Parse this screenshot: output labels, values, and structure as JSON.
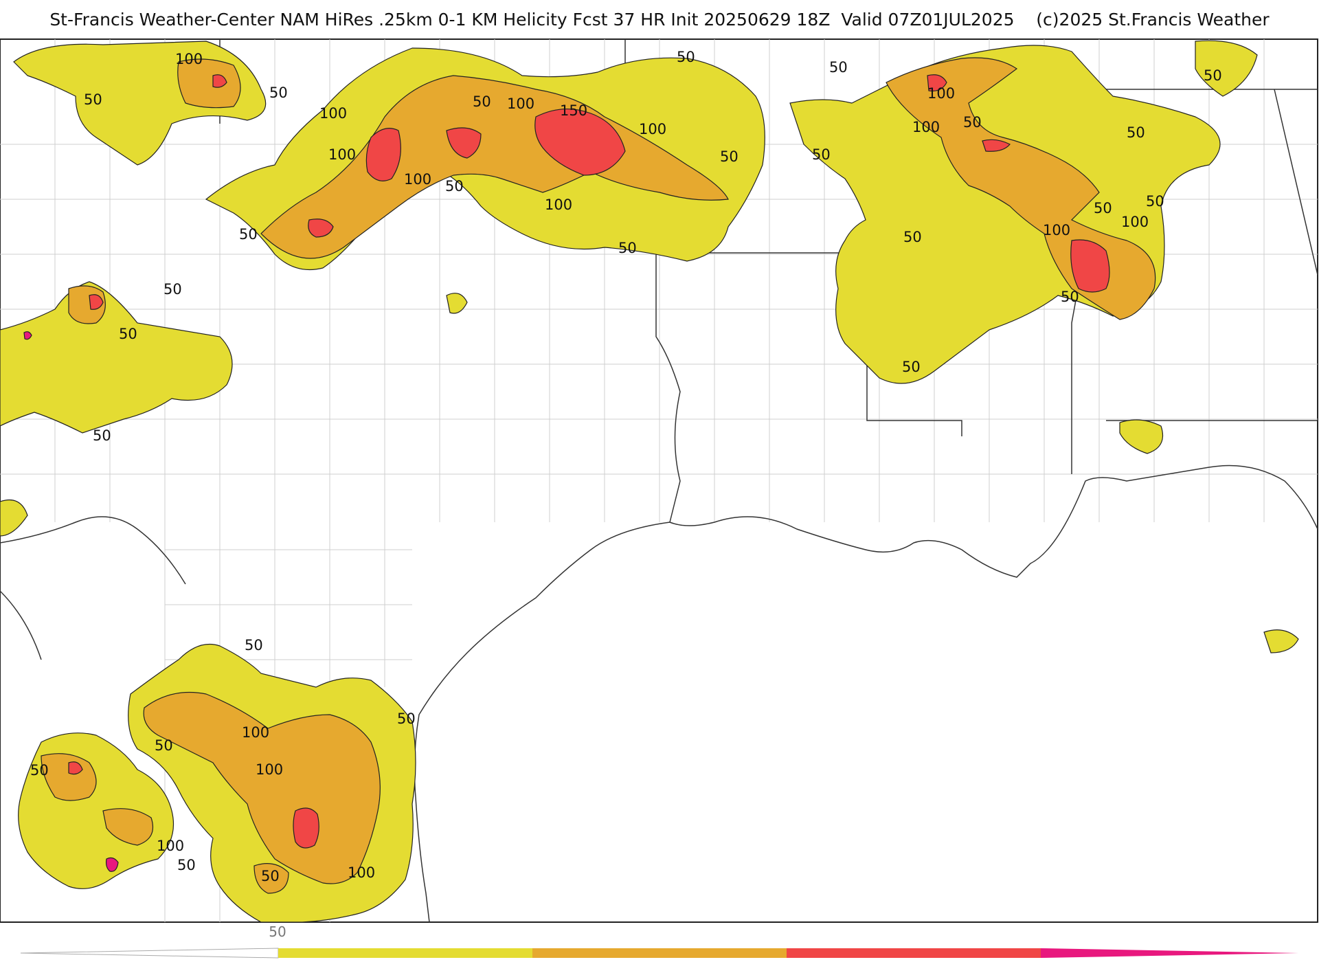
{
  "header": {
    "title": "St-Francis Weather-Center NAM HiRes .25km 0-1 KM Helicity Fcst 37 HR Init 20250629 18Z  Valid 07Z01JUL2025    (c)2025 St.Francis Weather"
  },
  "legend": {
    "tick_label": "50",
    "colors": {
      "band_50": "#e4dc32",
      "band_100": "#e6a92f",
      "band_150": "#f04646",
      "band_200": "#e8187e"
    }
  },
  "contour_labels": [
    "50",
    "100",
    "150"
  ]
}
